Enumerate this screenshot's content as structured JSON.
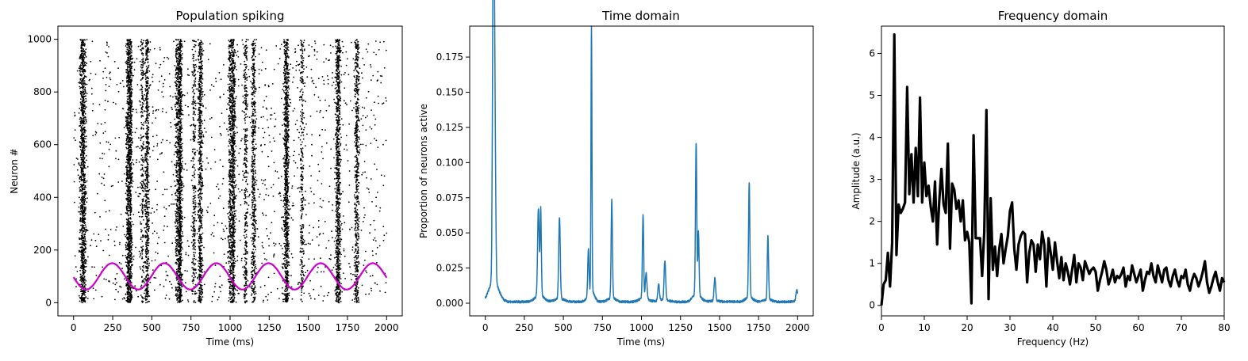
{
  "chart_data": [
    {
      "type": "scatter",
      "title": "Population spiking",
      "xlabel": "Time (ms)",
      "ylabel": "Neuron #",
      "xlim": [
        -100,
        2100
      ],
      "ylim": [
        -50,
        1050
      ],
      "xticks": [
        0,
        250,
        500,
        750,
        1000,
        1250,
        1500,
        1750,
        2000
      ],
      "yticks": [
        0,
        200,
        400,
        600,
        800,
        1000
      ],
      "grid": false,
      "neuron_count": 1000,
      "duration_ms": 2000,
      "bursts": [
        {
          "t": 60,
          "width": 20,
          "density": 1.0
        },
        {
          "t": 350,
          "width": 14,
          "density": 0.75
        },
        {
          "t": 365,
          "width": 10,
          "density": 0.45
        },
        {
          "t": 440,
          "width": 12,
          "density": 0.22
        },
        {
          "t": 470,
          "width": 12,
          "density": 0.55
        },
        {
          "t": 660,
          "width": 12,
          "density": 0.3
        },
        {
          "t": 680,
          "width": 14,
          "density": 0.9
        },
        {
          "t": 770,
          "width": 12,
          "density": 0.25
        },
        {
          "t": 810,
          "width": 14,
          "density": 0.6
        },
        {
          "t": 1000,
          "width": 12,
          "density": 0.35
        },
        {
          "t": 1020,
          "width": 14,
          "density": 0.7
        },
        {
          "t": 1100,
          "width": 12,
          "density": 0.3
        },
        {
          "t": 1150,
          "width": 14,
          "density": 0.45
        },
        {
          "t": 1360,
          "width": 16,
          "density": 0.85
        },
        {
          "t": 1460,
          "width": 12,
          "density": 0.25
        },
        {
          "t": 1690,
          "width": 16,
          "density": 0.8
        },
        {
          "t": 1810,
          "width": 14,
          "density": 0.5
        }
      ],
      "background_rate": 0.0007,
      "marker_color": "#000000",
      "overlay": {
        "type": "line",
        "color": "#cc00cc",
        "offset": 100,
        "amplitude": 50,
        "period_ms": 333,
        "x_range": [
          0,
          2000
        ]
      }
    },
    {
      "type": "line",
      "title": "Time domain",
      "xlabel": "Time (ms)",
      "ylabel": "Proportion of neurons active",
      "xlim": [
        -100,
        2100
      ],
      "ylim": [
        -0.009,
        0.197
      ],
      "xticks": [
        0,
        250,
        500,
        750,
        1000,
        1250,
        1500,
        1750,
        2000
      ],
      "yticks": [
        0.0,
        0.025,
        0.05,
        0.075,
        0.1,
        0.125,
        0.15,
        0.175
      ],
      "ytick_labels": [
        "0.000",
        "0.025",
        "0.050",
        "0.075",
        "0.100",
        "0.125",
        "0.150",
        "0.175"
      ],
      "grid": false,
      "color": "#1f77b4",
      "baseline": 0.001,
      "peaks": [
        {
          "t": 50,
          "v": 0.148,
          "w": 5
        },
        {
          "t": 55,
          "v": 0.145,
          "w": 5
        },
        {
          "t": 62,
          "v": 0.086,
          "w": 5
        },
        {
          "t": 340,
          "v": 0.062,
          "w": 5
        },
        {
          "t": 355,
          "v": 0.062,
          "w": 4
        },
        {
          "t": 475,
          "v": 0.058,
          "w": 5
        },
        {
          "t": 660,
          "v": 0.032,
          "w": 4
        },
        {
          "t": 680,
          "v": 0.188,
          "w": 3
        },
        {
          "t": 810,
          "v": 0.07,
          "w": 4
        },
        {
          "t": 1010,
          "v": 0.059,
          "w": 4
        },
        {
          "t": 1030,
          "v": 0.018,
          "w": 5
        },
        {
          "t": 1110,
          "v": 0.012,
          "w": 5
        },
        {
          "t": 1150,
          "v": 0.028,
          "w": 5
        },
        {
          "t": 1350,
          "v": 0.107,
          "w": 4
        },
        {
          "t": 1365,
          "v": 0.045,
          "w": 4
        },
        {
          "t": 1470,
          "v": 0.016,
          "w": 5
        },
        {
          "t": 1690,
          "v": 0.082,
          "w": 4
        },
        {
          "t": 1810,
          "v": 0.045,
          "w": 4
        },
        {
          "t": 1995,
          "v": 0.008,
          "w": 6
        }
      ]
    },
    {
      "type": "line",
      "title": "Frequency domain",
      "xlabel": "Frequency (Hz)",
      "ylabel": "Amplitude (a.u.)",
      "xlim": [
        0,
        80
      ],
      "ylim": [
        -0.25,
        6.65
      ],
      "xticks": [
        0,
        10,
        20,
        30,
        40,
        50,
        60,
        70,
        80
      ],
      "yticks": [
        0,
        1,
        2,
        3,
        4,
        5,
        6
      ],
      "grid": false,
      "color": "#000000",
      "frequency_resolution": 0.5,
      "amplitudes": [
        0.0,
        0.5,
        0.6,
        1.25,
        0.45,
        1.5,
        6.45,
        1.2,
        2.4,
        2.2,
        2.3,
        2.45,
        5.2,
        2.65,
        3.6,
        2.45,
        3.75,
        2.6,
        4.95,
        2.45,
        3.4,
        2.6,
        2.85,
        2.35,
        2.0,
        2.95,
        1.45,
        2.5,
        3.25,
        2.4,
        2.2,
        3.85,
        1.35,
        2.9,
        2.75,
        2.3,
        2.5,
        2.0,
        2.5,
        1.55,
        1.75,
        1.5,
        0.05,
        4.05,
        1.6,
        1.6,
        1.6,
        0.7,
        1.75,
        4.65,
        0.15,
        2.55,
        0.85,
        1.4,
        0.7,
        1.35,
        1.7,
        1.0,
        1.35,
        1.65,
        2.25,
        2.45,
        1.35,
        0.85,
        1.45,
        1.65,
        1.75,
        1.7,
        0.55,
        1.25,
        1.55,
        1.45,
        0.8,
        1.45,
        1.1,
        1.75,
        1.45,
        0.45,
        1.6,
        1.25,
        0.85,
        1.5,
        1.05,
        0.65,
        1.15,
        0.6,
        1.0,
        0.8,
        0.5,
        0.85,
        1.2,
        0.55,
        1.0,
        0.9,
        0.6,
        1.05,
        0.9,
        0.75,
        0.85,
        0.9,
        0.8,
        0.35,
        0.6,
        0.8,
        1.05,
        0.85,
        0.5,
        0.65,
        0.85,
        0.55,
        0.7,
        0.65,
        0.75,
        0.9,
        0.45,
        0.7,
        0.6,
        0.95,
        0.75,
        0.55,
        0.7,
        0.85,
        0.35,
        0.6,
        0.8,
        0.75,
        1.0,
        0.7,
        0.55,
        0.95,
        0.75,
        0.55,
        0.85,
        0.9,
        0.6,
        0.45,
        0.7,
        0.85,
        0.6,
        0.45,
        0.7,
        0.65,
        0.85,
        0.5,
        0.35,
        0.6,
        0.75,
        0.65,
        0.45,
        0.6,
        0.8,
        1.05,
        0.55,
        0.3,
        0.45,
        0.65,
        0.8,
        0.55,
        0.35,
        0.65,
        0.55
      ]
    }
  ]
}
